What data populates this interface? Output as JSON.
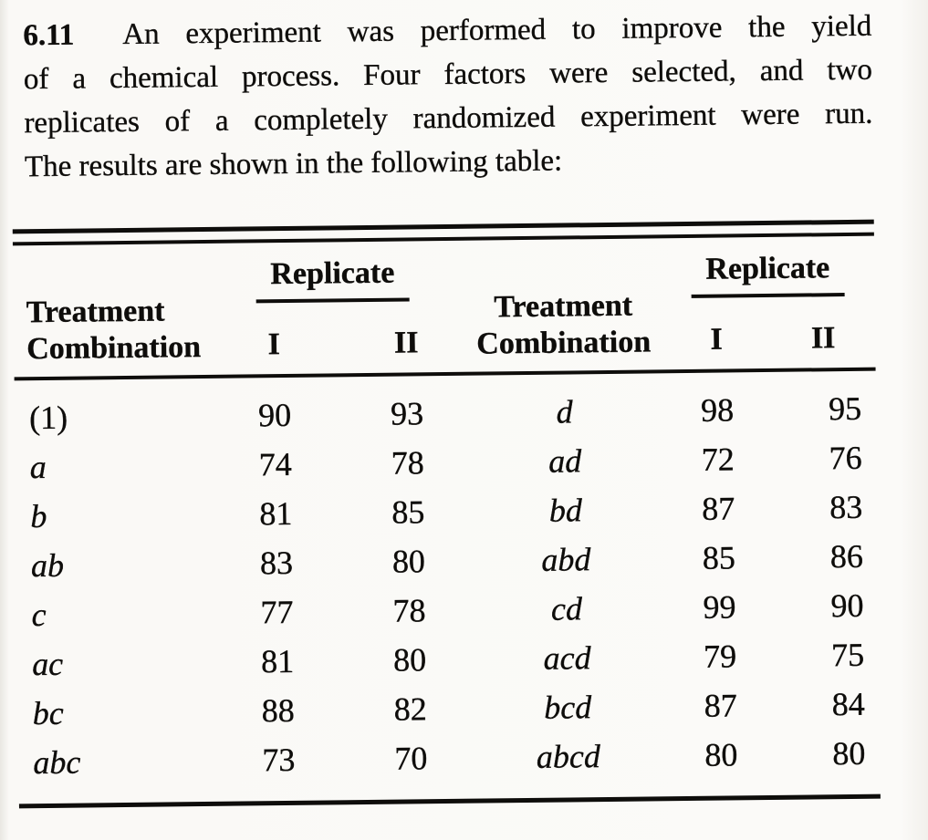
{
  "problem": {
    "number": "6.11",
    "lines": [
      "An experiment was performed to improve the yield",
      "of a chemical process. Four factors were selected, and two",
      "replicates of a completely randomized experiment were run.",
      "The results are shown in the following table:"
    ]
  },
  "table": {
    "left_panel": {
      "treatment_header": "Treatment Combination",
      "replicate_header": "Replicate",
      "replicate_columns": [
        "I",
        "II"
      ],
      "rows": [
        {
          "treatment": "(1)",
          "rep_i": "90",
          "rep_ii": "93"
        },
        {
          "treatment": "a",
          "rep_i": "74",
          "rep_ii": "78"
        },
        {
          "treatment": "b",
          "rep_i": "81",
          "rep_ii": "85"
        },
        {
          "treatment": "ab",
          "rep_i": "83",
          "rep_ii": "80"
        },
        {
          "treatment": "c",
          "rep_i": "77",
          "rep_ii": "78"
        },
        {
          "treatment": "ac",
          "rep_i": "81",
          "rep_ii": "80"
        },
        {
          "treatment": "bc",
          "rep_i": "88",
          "rep_ii": "82"
        },
        {
          "treatment": "abc",
          "rep_i": "73",
          "rep_ii": "70"
        }
      ]
    },
    "right_panel": {
      "treatment_header": "Treatment Combination",
      "replicate_header": "Replicate",
      "replicate_columns": [
        "I",
        "II"
      ],
      "rows": [
        {
          "treatment": "d",
          "rep_i": "98",
          "rep_ii": "95"
        },
        {
          "treatment": "ad",
          "rep_i": "72",
          "rep_ii": "76"
        },
        {
          "treatment": "bd",
          "rep_i": "87",
          "rep_ii": "83"
        },
        {
          "treatment": "abd",
          "rep_i": "85",
          "rep_ii": "86"
        },
        {
          "treatment": "cd",
          "rep_i": "99",
          "rep_ii": "90"
        },
        {
          "treatment": "acd",
          "rep_i": "79",
          "rep_ii": "75"
        },
        {
          "treatment": "bcd",
          "rep_i": "87",
          "rep_ii": "84"
        },
        {
          "treatment": "abcd",
          "rep_i": "80",
          "rep_ii": "80"
        }
      ]
    }
  }
}
